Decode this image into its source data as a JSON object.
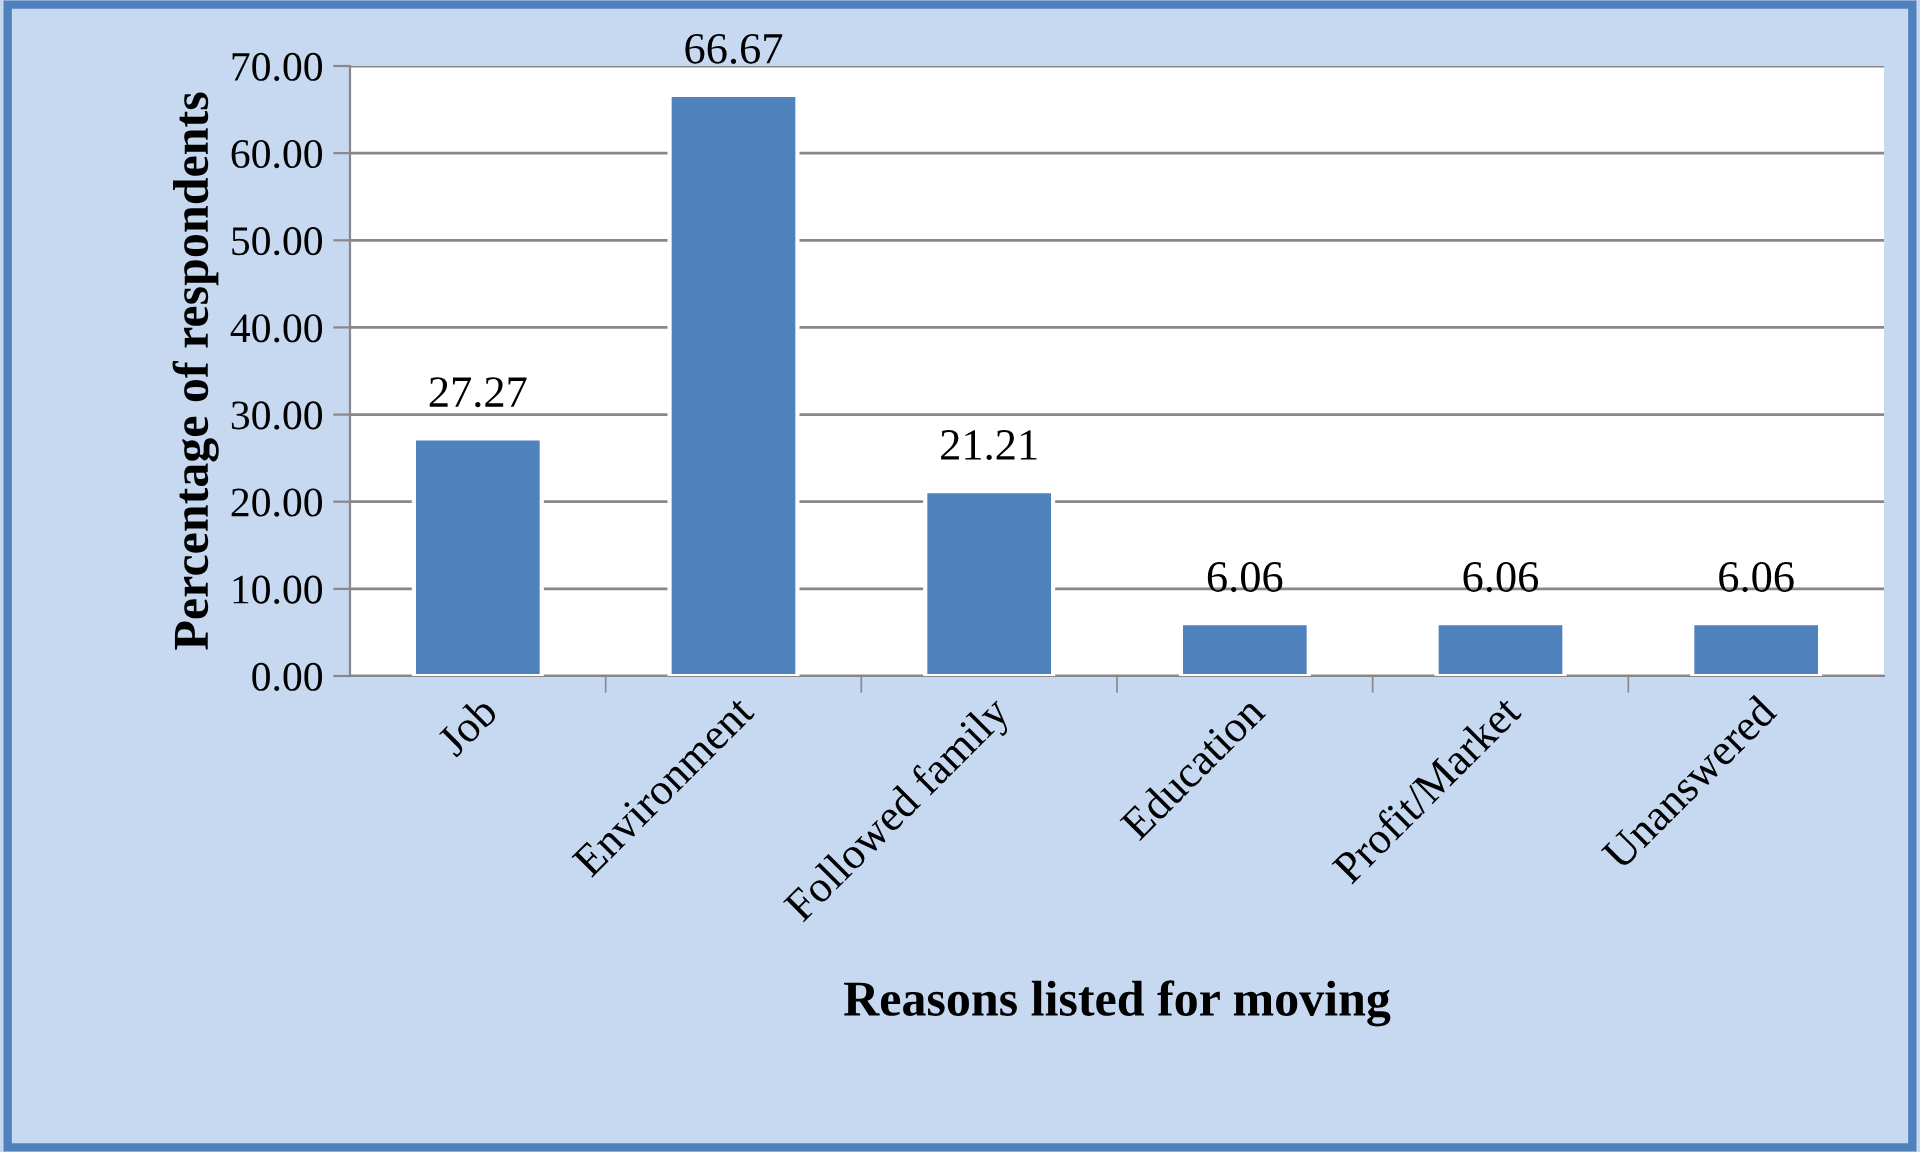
{
  "chart_data": {
    "type": "bar",
    "xlabel": "Reasons listed for moving",
    "ylabel": "Percentage of respondents",
    "categories": [
      "Job",
      "Environment",
      "Followed family",
      "Education",
      "Profit/Market",
      "Unanswered"
    ],
    "values": [
      27.27,
      66.67,
      21.21,
      6.06,
      6.06,
      6.06
    ],
    "color": "#4f81bd",
    "ylim": [
      0,
      70
    ],
    "yticks": [
      {
        "value": 0,
        "label": "0.00"
      },
      {
        "value": 10,
        "label": "10.00"
      },
      {
        "value": 20,
        "label": "20.00"
      },
      {
        "value": 30,
        "label": "30.00"
      },
      {
        "value": 40,
        "label": "40.00"
      },
      {
        "value": 50,
        "label": "50.00"
      },
      {
        "value": 60,
        "label": "60.00"
      },
      {
        "value": 70,
        "label": "70.00"
      }
    ],
    "grid": "y",
    "data_labels": true,
    "legend": false
  }
}
